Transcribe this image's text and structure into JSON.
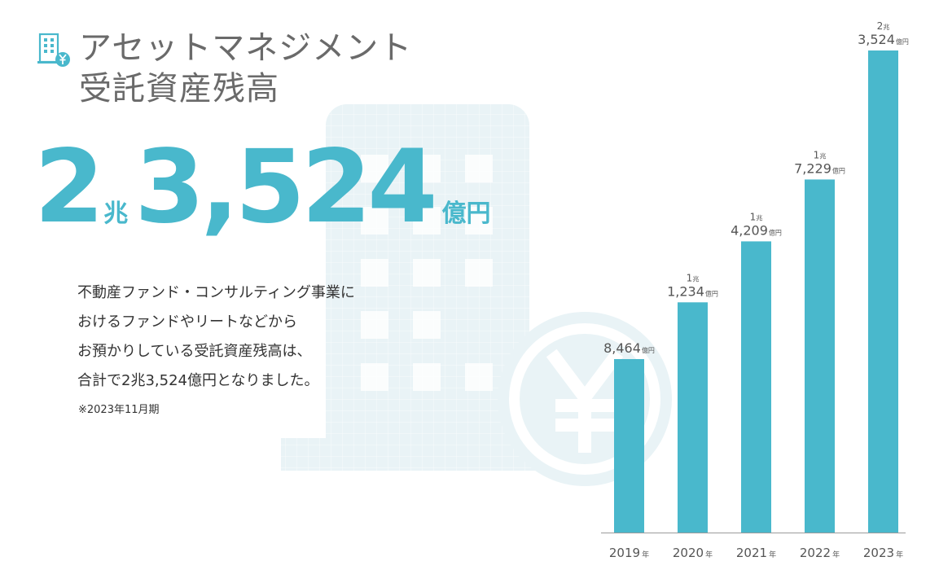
{
  "title": {
    "line1": "アセットマネジメント",
    "line2": "受託資産残高"
  },
  "headline": {
    "value_cho": "2",
    "unit_cho": "兆",
    "value_oku": "3,524",
    "unit_oku": "億円"
  },
  "description": [
    "不動産ファンド・コンサルティング事業に",
    "おけるファンドやリートなどから",
    "お預かりしている受託資産残高は、",
    "合計で2兆3,524億円となりました。"
  ],
  "note": "※2023年11月期",
  "colors": {
    "accent": "#49b8cc",
    "text": "#555555",
    "background_art": "#e9f3f6"
  },
  "icons": {
    "title": "building-yen-icon",
    "background": "building-yen-icon"
  },
  "chart_data": {
    "type": "bar",
    "title": "",
    "xlabel": "",
    "ylabel": "",
    "unit": "億円",
    "grid": false,
    "ylim": [
      0,
      24000
    ],
    "categories": [
      "2019",
      "2020",
      "2021",
      "2022",
      "2023"
    ],
    "category_suffix": "年",
    "values": [
      8464,
      11234,
      14209,
      17229,
      23524
    ],
    "data_labels": [
      {
        "cho": "",
        "oku": "8,464",
        "unit": "億円"
      },
      {
        "cho": "1兆",
        "oku": "1,234",
        "unit": "億円"
      },
      {
        "cho": "1兆",
        "oku": "4,209",
        "unit": "億円"
      },
      {
        "cho": "1兆",
        "oku": "7,229",
        "unit": "億円"
      },
      {
        "cho": "2兆",
        "oku": "3,524",
        "unit": "億円"
      }
    ]
  }
}
